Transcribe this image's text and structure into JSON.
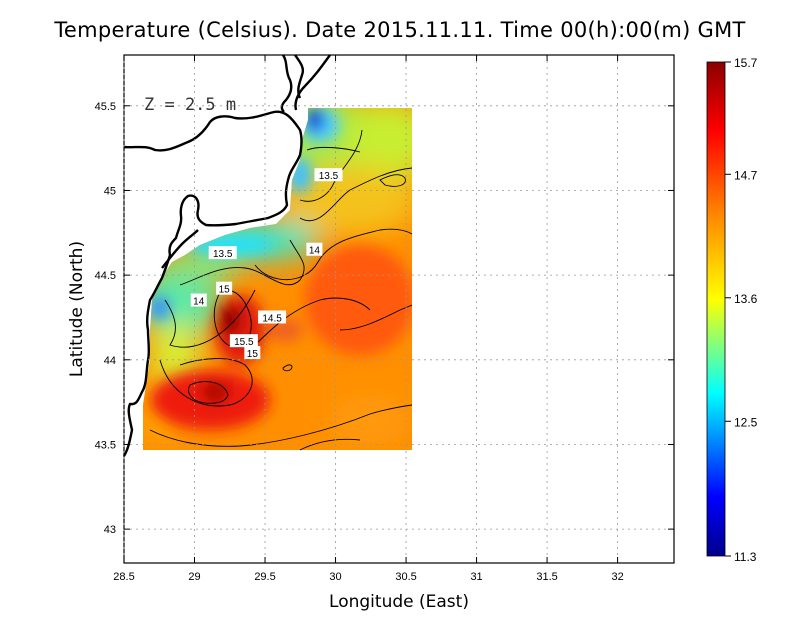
{
  "title": "Temperature (Celsius). Date 2015.11.11. Time 00(h):00(m)  GMT",
  "depth_label": "Z = 2.5 m",
  "axes": {
    "xlabel": "Longitude (East)",
    "ylabel": "Latitude (North)",
    "xlim": [
      28.5,
      32.4
    ],
    "ylim": [
      42.8,
      45.8
    ],
    "xticks": [
      "28.5",
      "29",
      "29.5",
      "30",
      "30.5",
      "31",
      "31.5",
      "32"
    ],
    "yticks": [
      "43",
      "43.5",
      "44",
      "44.5",
      "45",
      "45.5"
    ],
    "grid": true
  },
  "colorbar": {
    "min": 11.3,
    "max": 15.7,
    "ticks": [
      "15.7",
      "14.7",
      "13.6",
      "12.5",
      "11.3"
    ],
    "colors": [
      "#00008b",
      "#0000ff",
      "#00ffff",
      "#ffff00",
      "#ff8000",
      "#ff0000",
      "#8b0000"
    ]
  },
  "chart_data": {
    "type": "heatmap",
    "field": "sea surface temperature",
    "domain_lon": [
      28.63,
      30.53
    ],
    "domain_lat": [
      43.48,
      45.5
    ],
    "contour_labels": [
      {
        "text": "13.5",
        "lon": 29.95,
        "lat": 45.09
      },
      {
        "text": "14",
        "lon": 29.85,
        "lat": 44.65
      },
      {
        "text": "13.5",
        "lon": 29.2,
        "lat": 44.63
      },
      {
        "text": "15",
        "lon": 29.21,
        "lat": 44.42
      },
      {
        "text": "14",
        "lon": 29.03,
        "lat": 44.35
      },
      {
        "text": "14.5",
        "lon": 29.55,
        "lat": 44.25
      },
      {
        "text": "15.5",
        "lon": 29.35,
        "lat": 44.11
      },
      {
        "text": "15",
        "lon": 29.41,
        "lat": 44.04
      }
    ]
  }
}
